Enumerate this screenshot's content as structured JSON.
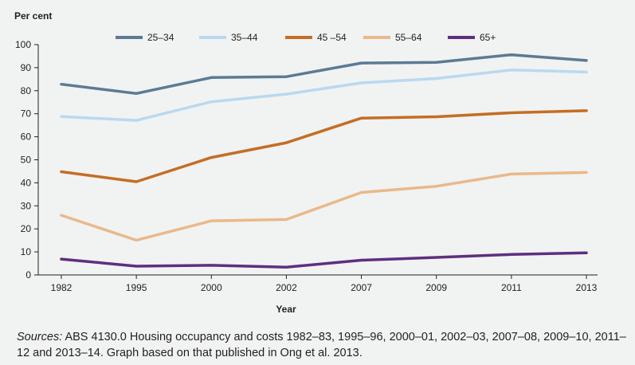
{
  "chart_data": {
    "type": "line",
    "ylabel": "Per cent",
    "xlabel": "Year",
    "ylim": [
      0,
      100
    ],
    "yticks": [
      0,
      10,
      20,
      30,
      40,
      50,
      60,
      70,
      80,
      90,
      100
    ],
    "categories": [
      "1982",
      "1995",
      "2000",
      "2002",
      "2007",
      "2009",
      "2011",
      "2013"
    ],
    "grid": false,
    "legend_position": "top",
    "series": [
      {
        "name": "25–34",
        "color": "#5b7b94",
        "values": [
          82.8,
          78.8,
          85.7,
          86.1,
          92.0,
          92.3,
          95.6,
          93.1
        ]
      },
      {
        "name": "35–44",
        "color": "#b8d9f0",
        "values": [
          68.8,
          67.1,
          75.2,
          78.5,
          83.4,
          85.3,
          89.0,
          88.1
        ]
      },
      {
        "name": "45 –54",
        "color": "#c46e24",
        "values": [
          44.8,
          40.5,
          51.0,
          57.4,
          68.1,
          68.7,
          70.4,
          71.3
        ]
      },
      {
        "name": "55–64",
        "color": "#e9b98a",
        "values": [
          25.9,
          15.1,
          23.5,
          24.1,
          35.8,
          38.5,
          43.8,
          44.5
        ]
      },
      {
        "name": "65+",
        "color": "#5e2f7f",
        "values": [
          6.9,
          3.8,
          4.2,
          3.4,
          6.4,
          7.6,
          8.9,
          9.6
        ]
      }
    ]
  },
  "sources": {
    "label": "Sources:",
    "text": " ABS 4130.0 Housing occupancy and costs 1982–83, 1995–96, 2000–01, 2002–03, 2007–08, 2009–10, 2011–12 and 2013–14. Graph based on that published in Ong et al. 2013."
  }
}
